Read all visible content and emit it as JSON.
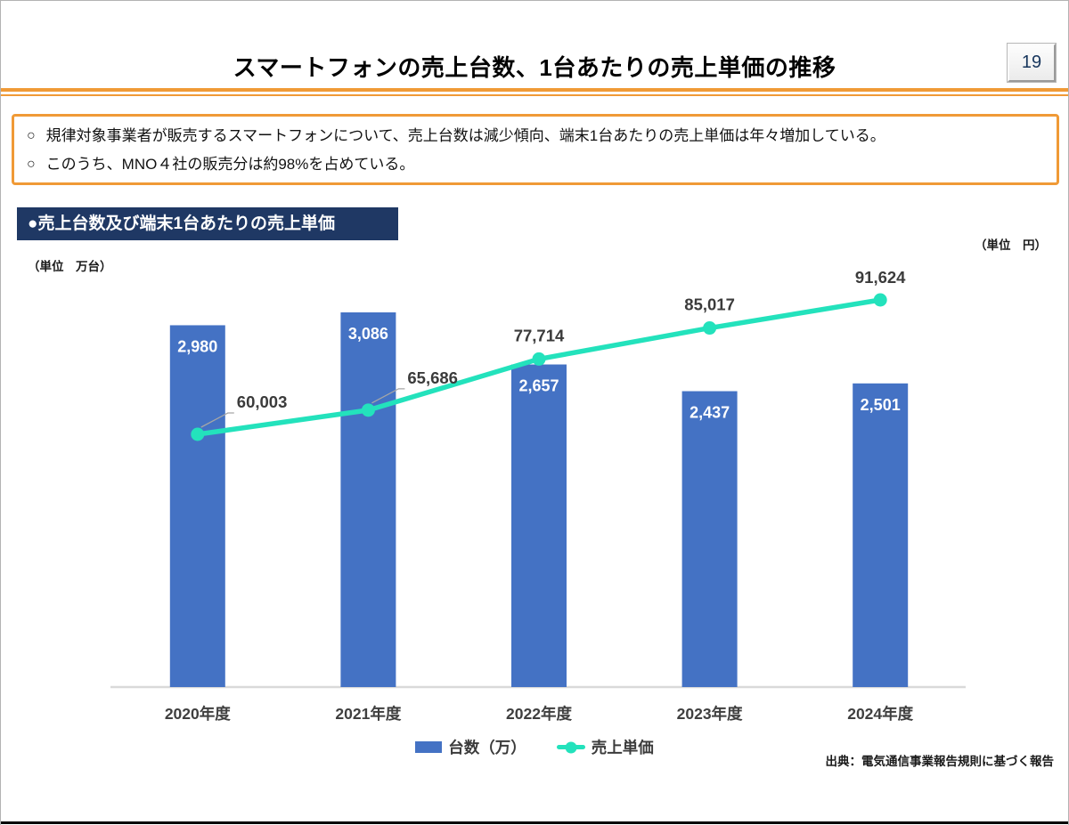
{
  "page": {
    "title": "スマートフォンの売上台数、1台あたりの売上単価の推移",
    "page_number": "19"
  },
  "colors": {
    "accent_orange": "#F09A36",
    "navy": "#1F3864",
    "bar_blue": "#4472C4",
    "line_teal": "#23E2BC"
  },
  "summary": {
    "bullet_marker": "○",
    "bullets": [
      "規律対象事業者が販売するスマートフォンについて、売上台数は減少傾向、端末1台あたりの売上単価は年々増加している。",
      "このうち、MNO４社の販売分は約98%を占めている。"
    ]
  },
  "chart": {
    "banner_title": "●売上台数及び端末1台あたりの売上単価",
    "unit_left": "（単位　万台）",
    "unit_right": "（単位　円）",
    "source": "出典：電気通信事業報告規則に基づく報告",
    "legend": [
      {
        "label": "台数（万）",
        "type": "bar"
      },
      {
        "label": "売上単価",
        "type": "line"
      }
    ]
  },
  "chart_data": {
    "type": "bar",
    "subtype": "bar+line combo",
    "title": "売上台数及び端末1台あたりの売上単価",
    "categories": [
      "2020年度",
      "2021年度",
      "2022年度",
      "2023年度",
      "2024年度"
    ],
    "series": [
      {
        "name": "台数（万）",
        "type": "bar",
        "axis": "left",
        "unit": "万台",
        "color": "#4472C4",
        "values": [
          2980,
          3086,
          2657,
          2437,
          2501
        ],
        "labels": [
          "2,980",
          "3,086",
          "2,657",
          "2,437",
          "2,501"
        ]
      },
      {
        "name": "売上単価",
        "type": "line",
        "axis": "right",
        "unit": "円",
        "color": "#23E2BC",
        "values": [
          60003,
          65686,
          77714,
          85017,
          91624
        ],
        "labels": [
          "60,003",
          "65,686",
          "77,714",
          "85,017",
          "91,624"
        ]
      }
    ],
    "xlabel": "",
    "ylabel_left": "万台",
    "ylabel_right": "円",
    "grid": false,
    "axes_tick_labels_hidden": true,
    "data_labels_shown": true,
    "legend_position": "bottom"
  }
}
